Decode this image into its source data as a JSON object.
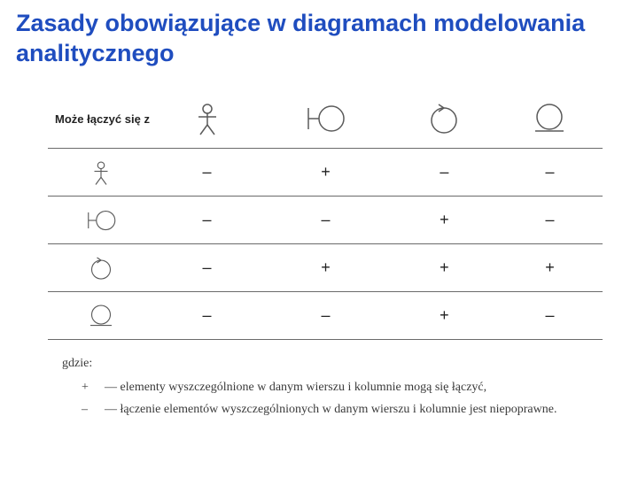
{
  "title": "Zasady obowiązujące w diagramach modelowania analitycznego",
  "header_label": "Może łączyć się z",
  "col_icons": [
    "actor",
    "boundary",
    "control",
    "entity"
  ],
  "row_icons": [
    "actor",
    "boundary",
    "control",
    "entity"
  ],
  "matrix": [
    [
      "–",
      "+",
      "–",
      "–"
    ],
    [
      "–",
      "–",
      "+",
      "–"
    ],
    [
      "–",
      "+",
      "+",
      "+"
    ],
    [
      "–",
      "–",
      "+",
      "–"
    ]
  ],
  "legend": {
    "where": "gdzie:",
    "plus": "— elementy wyszczególnione w danym wierszu i kolumnie mogą się łączyć,",
    "minus": "— łączenie elementów wyszczególnionych w danym wierszu i kolumnie jest niepoprawne."
  },
  "stroke_color": "#5a5a5a",
  "icon_large_size": 40,
  "icon_small_size": 30
}
